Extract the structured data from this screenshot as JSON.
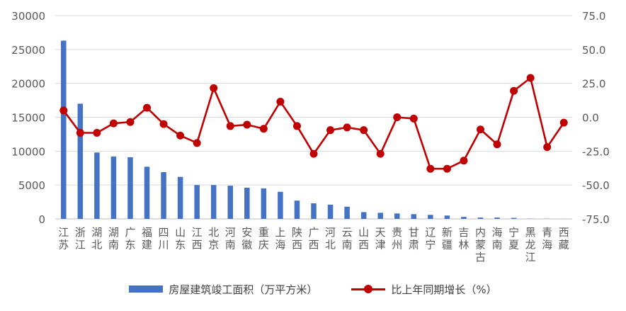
{
  "chart_data": {
    "type": "bar+line",
    "categories": [
      "江苏",
      "浙江",
      "湖北",
      "湖南",
      "广东",
      "福建",
      "四川",
      "山东",
      "江西",
      "北京",
      "河南",
      "安徽",
      "重庆",
      "上海",
      "陕西",
      "广西",
      "河北",
      "云南",
      "山西",
      "天津",
      "贵州",
      "甘肃",
      "辽宁",
      "新疆",
      "吉林",
      "内蒙古",
      "海南",
      "宁夏",
      "黑龙江",
      "青海",
      "西藏"
    ],
    "series": [
      {
        "name": "房屋建筑竣工面积（万平方米）",
        "type": "bar",
        "axis": "left",
        "color": "#4472C4",
        "values": [
          26300,
          17000,
          9800,
          9200,
          9100,
          7700,
          6900,
          6200,
          5000,
          5000,
          4900,
          4600,
          4500,
          4000,
          2700,
          2300,
          2100,
          1800,
          1000,
          900,
          800,
          700,
          600,
          500,
          300,
          200,
          200,
          150,
          30,
          20,
          10
        ]
      },
      {
        "name": "比上年同期增长（%）",
        "type": "line",
        "axis": "right",
        "color": "#C00000",
        "values": [
          5,
          -11.5,
          -11.5,
          -4.5,
          -3.5,
          7,
          -5,
          -13.5,
          -19,
          21.5,
          -6.5,
          -5.5,
          -8.5,
          11.5,
          -6.5,
          -27,
          -9.5,
          -7.5,
          -9.5,
          -27,
          0,
          -1,
          -38,
          -38,
          -32,
          -9,
          -20,
          19.5,
          29,
          -22,
          -4
        ]
      }
    ],
    "y_left": {
      "min": 0,
      "max": 30000,
      "ticks": [
        "0",
        "5000",
        "10000",
        "15000",
        "20000",
        "25000",
        "30000"
      ]
    },
    "y_right": {
      "min": -75,
      "max": 75,
      "ticks": [
        "-75.0",
        "-50.0",
        "-25.0",
        "0.0",
        "25.0",
        "50.0",
        "75.0"
      ]
    },
    "grid": true,
    "legend_position": "bottom"
  }
}
